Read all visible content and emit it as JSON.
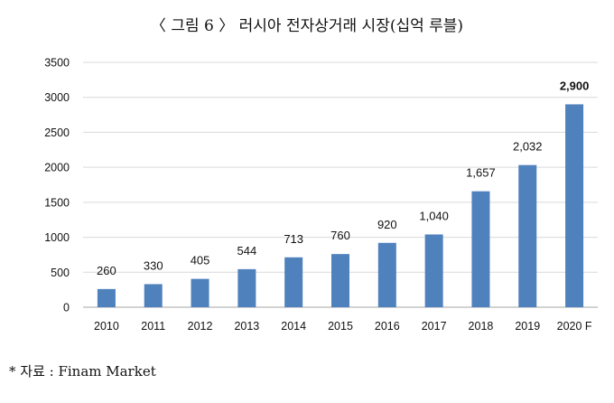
{
  "title": "〈 그림 6 〉 러시아 전자상거래 시장(십억 루블)",
  "source": "* 자료 : Finam Market",
  "chart_data": {
    "type": "bar",
    "categories": [
      "2010",
      "2011",
      "2012",
      "2013",
      "2014",
      "2015",
      "2016",
      "2017",
      "2018",
      "2019",
      "2020 F"
    ],
    "values": [
      260,
      330,
      405,
      544,
      713,
      760,
      920,
      1040,
      1657,
      2032,
      2900
    ],
    "data_labels": [
      "260",
      "330",
      "405",
      "544",
      "713",
      "760",
      "920",
      "1,040",
      "1,657",
      "2,032",
      "2,900"
    ],
    "emphasized_label_index": 10,
    "yticks": [
      "0",
      "500",
      "1000",
      "1500",
      "2000",
      "2500",
      "3000",
      "3500"
    ],
    "ylim": [
      0,
      3500
    ],
    "grid": true,
    "bar_color": "#4f81bd",
    "grid_color": "#d9d9d9"
  }
}
